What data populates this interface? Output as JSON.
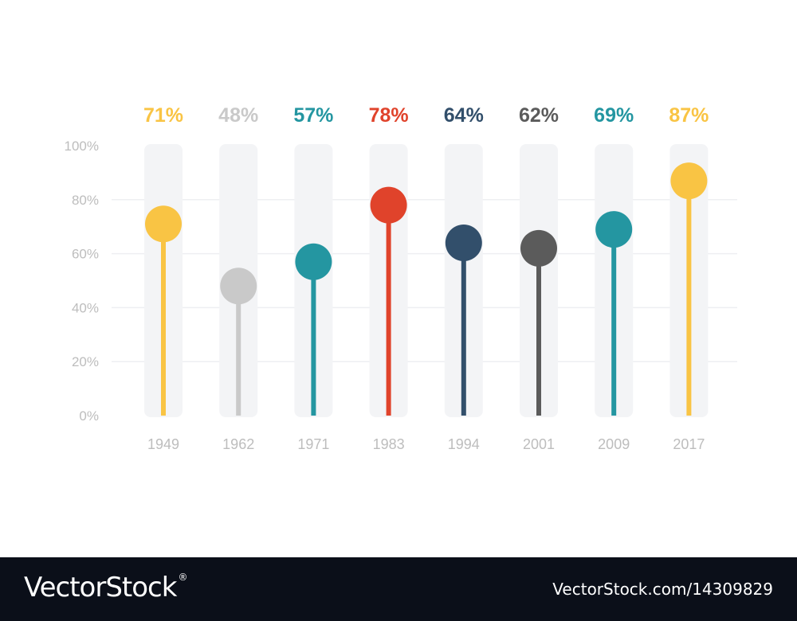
{
  "chart_data": {
    "type": "lollipop",
    "categories": [
      "1949",
      "1962",
      "1971",
      "1983",
      "1994",
      "2001",
      "2009",
      "2017"
    ],
    "values": [
      71,
      48,
      57,
      78,
      64,
      62,
      69,
      87
    ],
    "value_labels": [
      "71%",
      "48%",
      "57%",
      "78%",
      "64%",
      "62%",
      "69%",
      "87%"
    ],
    "colors": [
      "#f9c444",
      "#c9c9c9",
      "#2496a1",
      "#e0432b",
      "#324f6b",
      "#5b5b5b",
      "#2496a1",
      "#f9c444"
    ],
    "yticks": [
      "0%",
      "20%",
      "40%",
      "60%",
      "80%",
      "100%"
    ],
    "ylim": [
      0,
      100
    ],
    "title": "",
    "xlabel": "",
    "ylabel": "",
    "grid": true,
    "legend": "none"
  },
  "footer": {
    "brand": "VectorStock",
    "registered": "®",
    "stock_id": "VectorStock.com/14309829"
  }
}
